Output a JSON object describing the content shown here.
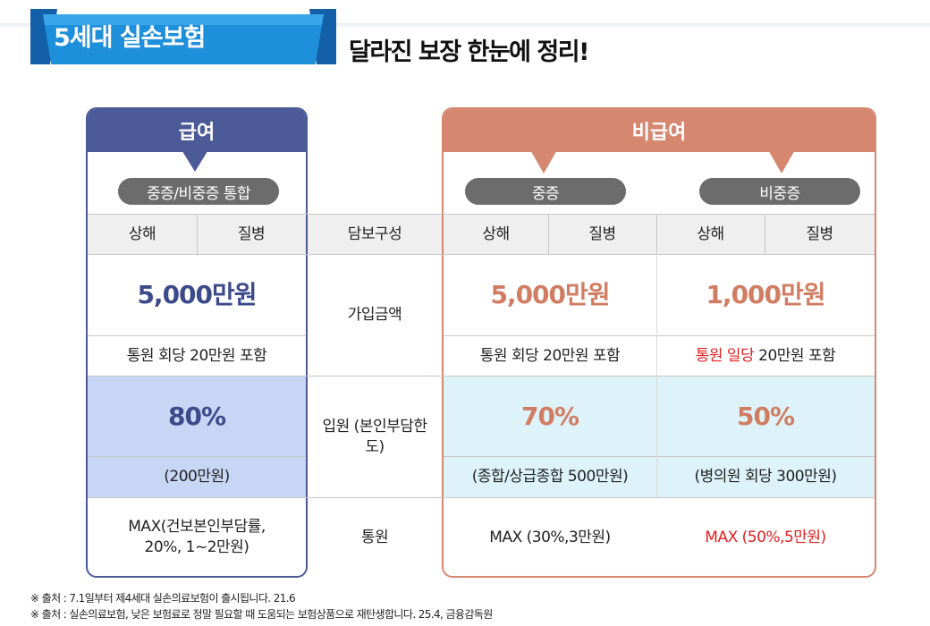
{
  "header": {
    "badge": "5세대 실손보험",
    "subtitle": "달라진 보장 한눈에 정리!"
  },
  "colors": {
    "navy": "#4c5a98",
    "salmon": "#d68770",
    "light_blue": "#c7d6f4",
    "light_cyan": "#ddf3f9",
    "red": "#e02020",
    "banner_blue": "#1a8fd8"
  },
  "left_panel": {
    "title": "급여",
    "pill": "중증/비중증 통합",
    "col_injury": "상해",
    "col_disease": "질병",
    "amount": "5,000만원",
    "amount_note": "통원 회당 20만원 포함",
    "hosp_rate": "80%",
    "hosp_limit": "(200만원)",
    "outpatient": "MAX(건보본인부담률, 20%, 1~2만원)"
  },
  "middle": {
    "header": "담보구성",
    "row_amount": "가입금액",
    "row_hosp": "입원 (본인부담한도)",
    "row_outpatient": "통원"
  },
  "right_panel": {
    "title": "비급여",
    "severe": {
      "pill": "중증",
      "col_injury": "상해",
      "col_disease": "질병",
      "amount": "5,000만원",
      "amount_note": "통원 회당 20만원 포함",
      "hosp_rate": "70%",
      "hosp_limit": "(종합/상급종합 500만원)",
      "outpatient": "MAX (30%,3만원)"
    },
    "nonsevere": {
      "pill": "비중증",
      "col_injury": "상해",
      "col_disease": "질병",
      "amount": "1,000만원",
      "amount_note_red": "통원 일당",
      "amount_note_rest": "20만원 포함",
      "hosp_rate": "50%",
      "hosp_limit": "(병의원 회당 300만원)",
      "outpatient": "MAX (50%,5만원)"
    }
  },
  "footnotes": [
    "※ 출처 : 7.1일부터 제4세대 실손의료보험이 출시됩니다. 21.6",
    "※ 출처 : 실손의료보험, 낮은 보험료로 정말 필요할 때 도움되는 보험상품으로 재탄생합니다. 25.4, 금융감독원"
  ]
}
